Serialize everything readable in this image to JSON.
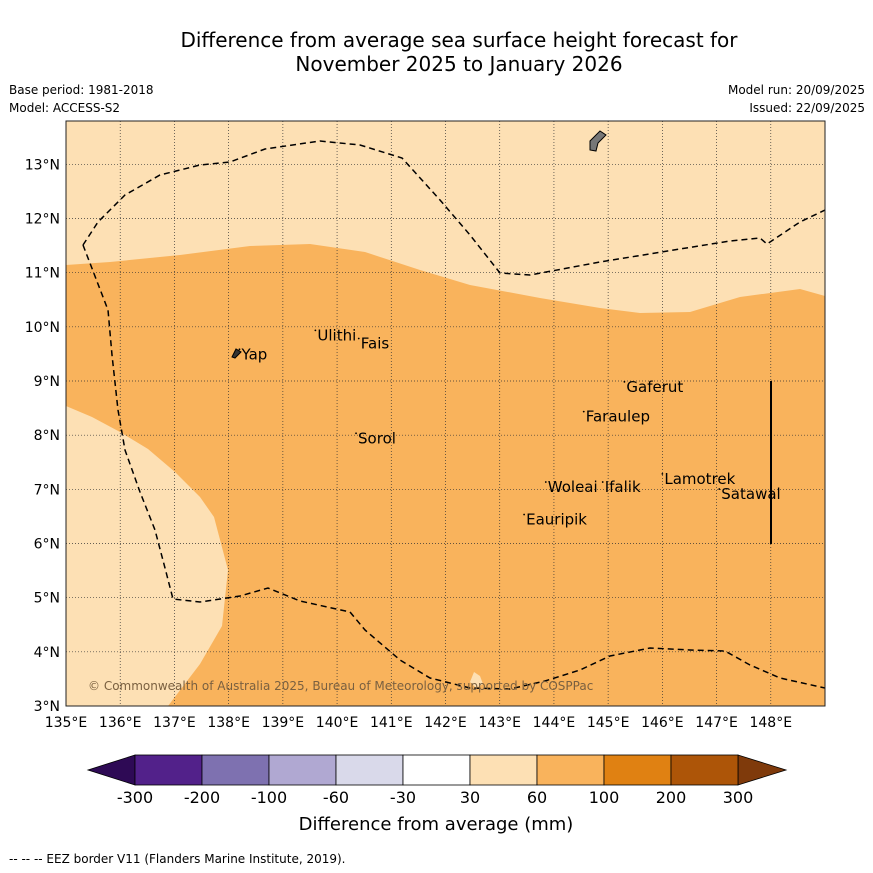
{
  "title": {
    "line1": "Difference from average sea surface height forecast for",
    "line2": "November 2025 to January 2026"
  },
  "meta_left": {
    "base_period": "Base period: 1981-2018",
    "model": "Model: ACCESS-S2"
  },
  "meta_right": {
    "model_run": "Model run: 20/09/2025",
    "issued": "Issued: 22/09/2025"
  },
  "map": {
    "lon_range": [
      135,
      149
    ],
    "lat_range": [
      3,
      13.8
    ],
    "x_ticks": [
      "135°E",
      "136°E",
      "137°E",
      "138°E",
      "139°E",
      "140°E",
      "141°E",
      "142°E",
      "143°E",
      "144°E",
      "145°E",
      "146°E",
      "147°E",
      "148°E"
    ],
    "y_ticks": [
      "13°N",
      "12°N",
      "11°N",
      "10°N",
      "9°N",
      "8°N",
      "7°N",
      "6°N",
      "5°N",
      "4°N",
      "3°N"
    ],
    "copyright": "© Commonwealth of Australia 2025, Bureau of Meteorology, supported by COSPPac",
    "places": [
      {
        "name": "Yap",
        "lon": 138.2,
        "lat": 9.4
      },
      {
        "name": "Ulithi",
        "lon": 139.6,
        "lat": 9.75
      },
      {
        "name": "Fais",
        "lon": 140.4,
        "lat": 9.6
      },
      {
        "name": "Sorol",
        "lon": 140.35,
        "lat": 7.85
      },
      {
        "name": "Gaferut",
        "lon": 145.3,
        "lat": 8.8
      },
      {
        "name": "Faraulep",
        "lon": 144.55,
        "lat": 8.25
      },
      {
        "name": "Woleai",
        "lon": 143.85,
        "lat": 6.95
      },
      {
        "name": "Ifalik",
        "lon": 144.9,
        "lat": 6.95
      },
      {
        "name": "Lamotrek",
        "lon": 146.0,
        "lat": 7.1
      },
      {
        "name": "Satawal",
        "lon": 147.05,
        "lat": 6.82
      },
      {
        "name": "Eauripik",
        "lon": 143.45,
        "lat": 6.35
      }
    ]
  },
  "colorbar": {
    "label": "Difference from average (mm)",
    "ticks": [
      "-300",
      "-200",
      "-100",
      "-60",
      "-30",
      "30",
      "60",
      "100",
      "200",
      "300"
    ],
    "colors": [
      "#52218a",
      "#7e71b0",
      "#b0a8d2",
      "#d9d9ea",
      "#ffffff",
      "#fde0b4",
      "#f9b35c",
      "#e08112",
      "#ad5508"
    ],
    "extend_low_color": "#2e0a55",
    "extend_high_color": "#7f3a0b"
  },
  "footer": "--  --  -- EEZ border V11 (Flanders Marine Institute, 2019)."
}
